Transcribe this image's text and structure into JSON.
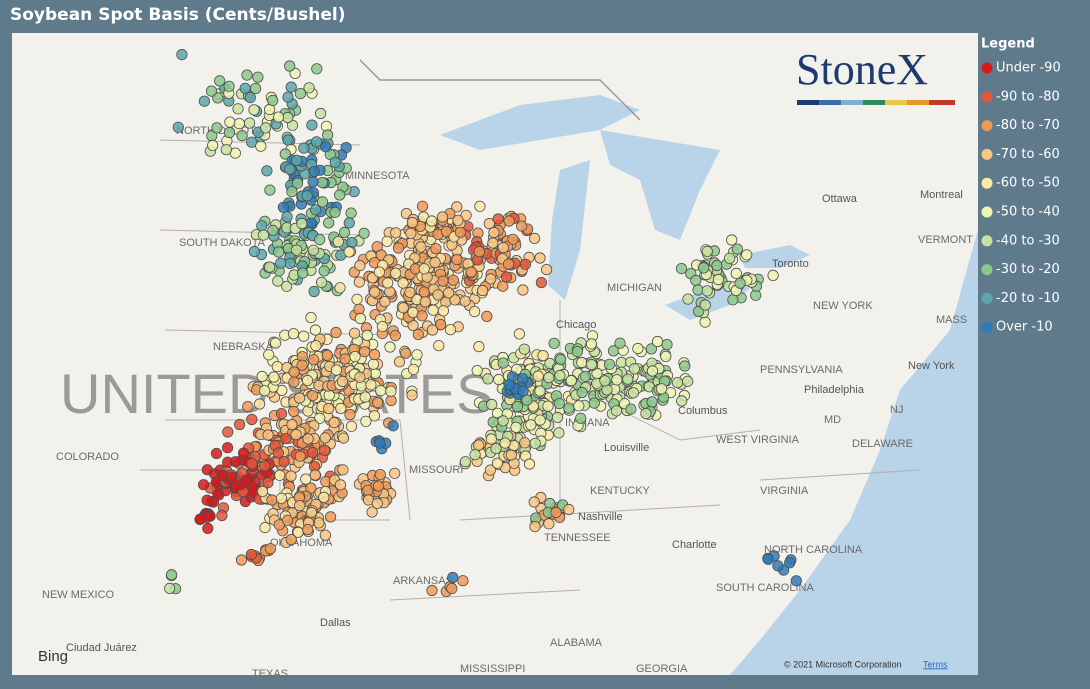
{
  "header": {
    "title": "Soybean Spot Basis (Cents/Bushel)"
  },
  "legend": {
    "title": "Legend",
    "items": [
      {
        "label": "Under -90",
        "color": "#d7191c"
      },
      {
        "label": "-90 to -80",
        "color": "#e4563a"
      },
      {
        "label": "-80 to -70",
        "color": "#f09a58"
      },
      {
        "label": "-70 to -60",
        "color": "#f8c582"
      },
      {
        "label": "-60 to -50",
        "color": "#fbe9a4"
      },
      {
        "label": "-50 to -40",
        "color": "#eef4b2"
      },
      {
        "label": "-40 to -30",
        "color": "#c5e2a0"
      },
      {
        "label": "-30 to -20",
        "color": "#8cc88c"
      },
      {
        "label": "-20 to -10",
        "color": "#5aa7aa"
      },
      {
        "label": "Over -10",
        "color": "#2f7bb8"
      }
    ]
  },
  "logo": "StoneX",
  "map": {
    "big_label": "UNITED STATES",
    "labels": [
      "NORTH DAKOTA",
      "MINNESOTA",
      "SOUTH DAKOTA",
      "NEBRASKA",
      "COLORADO",
      "MISSOURI",
      "KENTUCKY",
      "TENNESSEE",
      "OKLAHOMA",
      "ARKANSAS",
      "NEW MEXICO",
      "ALABAMA",
      "MISSISSIPPI",
      "GEORGIA",
      "TEXAS",
      "SOUTH CAROLINA",
      "NORTH CAROLINA",
      "VIRGINIA",
      "WEST VIRGINIA",
      "PENNSYLVANIA",
      "NEW YORK",
      "MICHIGAN",
      "INDIANA",
      "Chicago",
      "Louisville",
      "Nashville",
      "Charlotte",
      "Columbus",
      "Dallas",
      "Ottawa",
      "Montreal",
      "Toronto",
      "Philadelphia",
      "New York",
      "MD",
      "NJ",
      "DELAWARE",
      "VERMONT",
      "MASS",
      "Ciudad Juárez"
    ],
    "attribution": "© 2021 Microsoft Corporation",
    "terms": "Terms",
    "provider": "Bing"
  }
}
